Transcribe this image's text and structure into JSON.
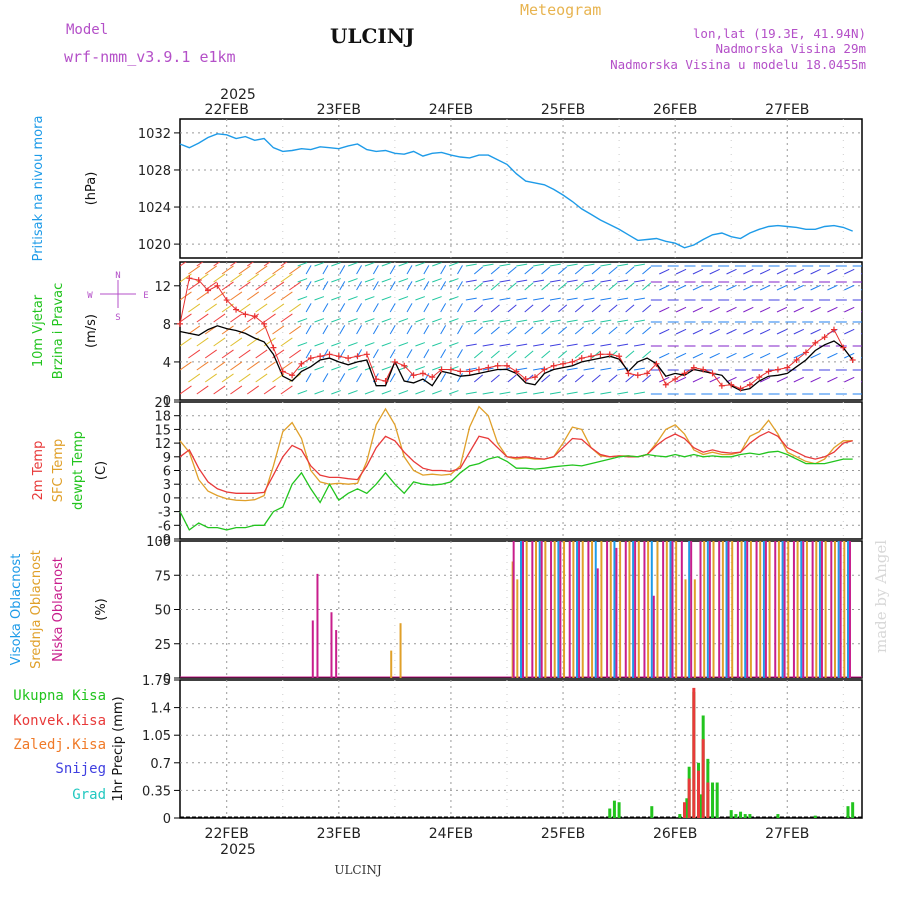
{
  "header": {
    "model_label": "Model",
    "model_name": "wrf-nmm_v3.9.1  e1km",
    "station": "ULCINJ",
    "product": "Meteogram",
    "lonlat": "lon,lat (19.3E, 41.94N)",
    "elevation": "Nadmorska Visina 29m",
    "model_elevation": "Nadmorska Visina u modelu 18.0455m",
    "footer_station": "ULCINJ",
    "watermark": "made by Angel"
  },
  "time_axis": {
    "year_top": "2025",
    "year_bottom": "2025",
    "days": [
      "22FEB",
      "23FEB",
      "24FEB",
      "25FEB",
      "26FEB",
      "27FEB"
    ]
  },
  "colors": {
    "pressure": "#1e9be8",
    "wind_speed": "#000000",
    "gust": "#e83030",
    "temp2m": "#e83a3a",
    "sfc_temp": "#e0a02a",
    "dewpoint": "#22c41e",
    "cloud_high": "#1e9be8",
    "cloud_mid": "#e0a02a",
    "cloud_low": "#c81e8c",
    "precip_total": "#22c41e",
    "precip_conv": "#e83a3a",
    "precip_frz": "#f07a28",
    "snow": "#4040e0",
    "graupel": "#22c8c0",
    "header_purple": "#b450c8",
    "header_orange": "#e8b450"
  },
  "chart_data": [
    {
      "type": "line",
      "panel": "pressure",
      "ylabel_lines": [
        "Pritisak na nivou mora",
        "(hPa)"
      ],
      "ylim": [
        1018.5,
        1033.5
      ],
      "yticks": [
        "1020",
        "1024",
        "1028",
        "1032"
      ],
      "x": [
        0,
        2,
        4,
        6,
        8,
        10,
        12,
        14,
        16,
        18,
        20,
        22,
        24,
        26,
        28,
        30,
        32,
        34,
        36,
        38,
        40,
        42,
        44,
        46,
        48,
        50,
        52,
        54,
        56,
        58,
        60,
        62,
        64,
        66,
        68,
        70,
        72,
        74,
        76,
        78,
        80,
        82,
        84,
        86,
        88,
        90,
        92,
        94,
        96,
        98,
        100,
        102,
        104,
        106,
        108,
        110,
        112,
        114,
        116,
        118,
        120,
        122,
        124,
        126,
        128,
        130,
        132,
        134,
        136,
        138,
        140,
        142,
        144
      ],
      "series": [
        {
          "values": [
            1030.8,
            1030.4,
            1030.9,
            1031.5,
            1031.9,
            1031.8,
            1031.4,
            1031.6,
            1031.2,
            1031.4,
            1030.4,
            1030.0,
            1030.1,
            1030.3,
            1030.2,
            1030.5,
            1030.4,
            1030.3,
            1030.6,
            1030.8,
            1030.2,
            1030.0,
            1030.1,
            1029.8,
            1029.7,
            1030.0,
            1029.5,
            1029.8,
            1029.9,
            1029.6,
            1029.4,
            1029.3,
            1029.6,
            1029.6,
            1029.1,
            1028.6,
            1027.6,
            1026.8,
            1026.6,
            1026.4,
            1025.9,
            1025.3,
            1024.6,
            1023.8,
            1023.2,
            1022.6,
            1022.1,
            1021.6,
            1021.0,
            1020.4,
            1020.5,
            1020.6,
            1020.3,
            1020.1,
            1019.6,
            1019.9,
            1020.5,
            1021.0,
            1021.2,
            1020.8,
            1020.6,
            1021.2,
            1021.6,
            1021.9,
            1022.0,
            1021.9,
            1021.8,
            1021.6,
            1021.6,
            1021.9,
            1022.0,
            1021.8,
            1021.4
          ]
        }
      ]
    },
    {
      "type": "line",
      "panel": "wind",
      "ylabel_lines": [
        "10m Vjetar",
        "Brzina i Pravac",
        "(m/s)"
      ],
      "compass": [
        "N",
        "W",
        "E",
        "S"
      ],
      "ylim": [
        0,
        14.5
      ],
      "yticks": [
        "0",
        "4",
        "8",
        "12"
      ],
      "x": [
        0,
        2,
        4,
        6,
        8,
        10,
        12,
        14,
        16,
        18,
        20,
        22,
        24,
        26,
        28,
        30,
        32,
        34,
        36,
        38,
        40,
        42,
        44,
        46,
        48,
        50,
        52,
        54,
        56,
        58,
        60,
        62,
        64,
        66,
        68,
        70,
        72,
        74,
        76,
        78,
        80,
        82,
        84,
        86,
        88,
        90,
        92,
        94,
        96,
        98,
        100,
        102,
        104,
        106,
        108,
        110,
        112,
        114,
        116,
        118,
        120,
        122,
        124,
        126,
        128,
        130,
        132,
        134,
        136,
        138,
        140,
        142,
        144
      ],
      "series": [
        {
          "name": "speed",
          "values": [
            7.2,
            7.0,
            6.8,
            7.4,
            7.8,
            7.5,
            7.3,
            7.0,
            6.5,
            6.1,
            4.8,
            2.5,
            2.0,
            3.0,
            3.5,
            4.2,
            4.4,
            4.0,
            3.7,
            4.0,
            4.2,
            1.5,
            1.5,
            4.0,
            2.0,
            1.8,
            2.2,
            1.5,
            3.0,
            2.8,
            2.5,
            2.6,
            2.8,
            3.0,
            3.2,
            3.2,
            2.8,
            1.8,
            1.6,
            2.8,
            3.2,
            3.4,
            3.6,
            4.0,
            4.2,
            4.4,
            4.6,
            4.3,
            3.0,
            4.0,
            4.4,
            3.8,
            2.5,
            2.8,
            2.6,
            3.2,
            3.0,
            2.8,
            2.6,
            1.5,
            1.0,
            1.2,
            2.0,
            2.5,
            2.6,
            2.8,
            3.5,
            4.2,
            5.2,
            5.8,
            6.2,
            5.5,
            4.2
          ]
        },
        {
          "name": "gust",
          "values": [
            8.0,
            12.8,
            12.6,
            11.5,
            12.0,
            10.5,
            9.5,
            9.0,
            8.8,
            8.0,
            5.5,
            3.0,
            2.6,
            3.8,
            4.4,
            4.6,
            4.8,
            4.6,
            4.4,
            4.6,
            4.8,
            2.2,
            2.0,
            4.0,
            3.6,
            2.6,
            2.8,
            2.4,
            3.2,
            3.2,
            3.0,
            3.0,
            3.2,
            3.4,
            3.6,
            3.6,
            3.0,
            2.2,
            2.4,
            3.2,
            3.6,
            3.8,
            4.0,
            4.4,
            4.6,
            4.8,
            4.8,
            4.6,
            2.8,
            2.6,
            2.8,
            3.8,
            1.6,
            2.2,
            2.8,
            3.4,
            3.2,
            2.8,
            1.5,
            1.6,
            1.2,
            1.6,
            2.4,
            3.0,
            3.2,
            3.4,
            4.2,
            5.0,
            6.0,
            6.6,
            7.4,
            5.5,
            4.2
          ]
        }
      ]
    },
    {
      "type": "line",
      "panel": "temperature",
      "ylabel_lines": [
        "2m Temp",
        "SFC Temp",
        "dewpt Temp",
        "(C)"
      ],
      "ylim": [
        -9,
        21
      ],
      "yticks": [
        "-9",
        "-6",
        "-3",
        "0",
        "3",
        "6",
        "9",
        "12",
        "15",
        "18",
        "21"
      ],
      "x": [
        0,
        2,
        4,
        6,
        8,
        10,
        12,
        14,
        16,
        18,
        20,
        22,
        24,
        26,
        28,
        30,
        32,
        34,
        36,
        38,
        40,
        42,
        44,
        46,
        48,
        50,
        52,
        54,
        56,
        58,
        60,
        62,
        64,
        66,
        68,
        70,
        72,
        74,
        76,
        78,
        80,
        82,
        84,
        86,
        88,
        90,
        92,
        94,
        96,
        98,
        100,
        102,
        104,
        106,
        108,
        110,
        112,
        114,
        116,
        118,
        120,
        122,
        124,
        126,
        128,
        130,
        132,
        134,
        136,
        138,
        140,
        142,
        144
      ],
      "series": [
        {
          "name": "2m Temp",
          "values": [
            9.0,
            10.5,
            6.5,
            3.5,
            2.0,
            1.3,
            1.0,
            1.0,
            1.0,
            1.2,
            5.0,
            9.0,
            11.5,
            10.5,
            7.0,
            5.0,
            4.5,
            4.5,
            4.2,
            4.0,
            7.0,
            11.0,
            13.5,
            12.5,
            10.0,
            8.0,
            6.5,
            6.0,
            6.0,
            5.8,
            6.5,
            10.0,
            13.5,
            13.0,
            11.0,
            9.0,
            8.8,
            9.0,
            8.7,
            8.5,
            9.0,
            11.0,
            13.0,
            12.8,
            11.0,
            9.5,
            9.0,
            9.2,
            9.0,
            9.0,
            9.5,
            11.5,
            13.0,
            14.0,
            13.0,
            11.0,
            10.0,
            10.5,
            10.0,
            9.8,
            10.0,
            12.0,
            13.5,
            14.5,
            13.5,
            11.0,
            10.0,
            9.0,
            8.5,
            9.0,
            10.0,
            12.0,
            12.5
          ]
        },
        {
          "name": "SFC Temp",
          "values": [
            12.5,
            10.0,
            4.0,
            1.5,
            0.5,
            -0.2,
            -0.5,
            -0.6,
            -0.4,
            0.5,
            7.0,
            14.5,
            16.5,
            13.0,
            6.0,
            3.5,
            3.0,
            3.2,
            3.0,
            3.2,
            8.0,
            16.0,
            19.5,
            16.0,
            9.0,
            6.0,
            5.0,
            5.2,
            5.0,
            5.2,
            7.0,
            15.5,
            20.0,
            18.0,
            12.0,
            9.0,
            8.5,
            8.8,
            8.5,
            8.5,
            9.0,
            12.0,
            15.5,
            15.0,
            11.0,
            9.2,
            9.0,
            9.2,
            9.2,
            9.0,
            9.5,
            12.0,
            15.0,
            16.0,
            14.0,
            10.5,
            9.5,
            10.0,
            9.5,
            9.5,
            10.0,
            13.5,
            14.5,
            17.0,
            14.0,
            10.0,
            9.0,
            8.0,
            7.5,
            8.5,
            11.0,
            12.5,
            12.5
          ]
        },
        {
          "name": "dewpt Temp",
          "values": [
            -3.0,
            -7.0,
            -5.5,
            -6.5,
            -6.5,
            -7.0,
            -6.5,
            -6.5,
            -6.0,
            -6.0,
            -3.0,
            -2.0,
            3.0,
            5.5,
            2.0,
            -1.0,
            3.0,
            -0.5,
            1.0,
            2.0,
            1.0,
            3.0,
            5.5,
            3.0,
            1.0,
            3.5,
            3.0,
            2.8,
            3.0,
            3.5,
            5.5,
            7.0,
            7.5,
            8.5,
            9.0,
            8.0,
            6.5,
            6.5,
            6.3,
            6.5,
            6.8,
            7.0,
            7.2,
            7.0,
            7.5,
            8.0,
            8.5,
            9.0,
            9.2,
            9.0,
            9.5,
            9.2,
            9.0,
            9.5,
            9.0,
            9.5,
            9.0,
            9.2,
            9.0,
            9.0,
            9.5,
            9.8,
            9.5,
            10.0,
            10.2,
            9.5,
            8.5,
            7.5,
            7.5,
            7.5,
            8.0,
            8.5,
            8.5
          ]
        }
      ]
    },
    {
      "type": "bar",
      "panel": "cloud",
      "ylabel_lines": [
        "Visoka Oblacnost",
        "Srednja Oblacnost",
        "Niska Oblacnost",
        "(%)"
      ],
      "ylim": [
        0,
        100
      ],
      "yticks": [
        "0",
        "25",
        "50",
        "75",
        "100"
      ],
      "series": [
        {
          "name": "Visoka Oblacnost",
          "x": [
            71,
            73,
            77,
            81,
            85,
            89,
            93,
            97,
            101,
            105,
            109,
            113,
            117,
            121,
            125,
            129,
            133,
            137,
            141,
            143
          ],
          "values": [
            0,
            100,
            100,
            100,
            100,
            100,
            100,
            100,
            100,
            100,
            100,
            100,
            100,
            100,
            100,
            100,
            100,
            100,
            100,
            100
          ]
        },
        {
          "name": "Srednja Oblacnost",
          "x": [
            45,
            47,
            71,
            72,
            74,
            76,
            78,
            80,
            82,
            84,
            86,
            88,
            90,
            92,
            94,
            96,
            98,
            100,
            102,
            104,
            106,
            108,
            110,
            112,
            114,
            116,
            118,
            120,
            122,
            124,
            126,
            128,
            130,
            132,
            134,
            136,
            138,
            140,
            142
          ],
          "values": [
            20,
            40,
            85,
            72,
            100,
            100,
            100,
            100,
            100,
            100,
            100,
            100,
            100,
            100,
            100,
            100,
            100,
            100,
            100,
            100,
            100,
            72,
            72,
            100,
            100,
            100,
            100,
            100,
            100,
            100,
            100,
            100,
            100,
            100,
            100,
            100,
            100,
            100,
            100
          ]
        },
        {
          "name": "Niska Oblacnost",
          "x": [
            28,
            29,
            32,
            33,
            71,
            73,
            75,
            77,
            79,
            81,
            83,
            85,
            87,
            89,
            91,
            93,
            95,
            97,
            99,
            101,
            103,
            105,
            107,
            109,
            111,
            113,
            115,
            117,
            119,
            121,
            123,
            125,
            127,
            129,
            131,
            133,
            135,
            137,
            139,
            141,
            143
          ],
          "values": [
            42,
            76,
            48,
            35,
            100,
            100,
            100,
            100,
            100,
            100,
            100,
            100,
            100,
            80,
            100,
            95,
            100,
            100,
            100,
            60,
            100,
            100,
            100,
            100,
            100,
            100,
            100,
            100,
            100,
            100,
            100,
            100,
            100,
            100,
            100,
            100,
            100,
            100,
            100,
            100,
            100
          ]
        }
      ]
    },
    {
      "type": "bar",
      "panel": "precip",
      "ylabel_lines": [
        "1hr Precip (mm)"
      ],
      "ylim": [
        0,
        1.75
      ],
      "yticks": [
        "0",
        "0.35",
        "0.7",
        "1.05",
        "1.4",
        "1.75"
      ],
      "legend": [
        "Ukupna Kisa",
        "Konvek.Kisa",
        "Zaledj.Kisa",
        "Snijeg",
        "Grad"
      ],
      "series": [
        {
          "name": "Ukupna Kisa",
          "x": [
            92,
            93,
            94,
            101,
            107,
            108,
            108.5,
            109,
            110,
            111,
            111.5,
            112,
            113,
            114,
            115,
            118,
            119,
            120,
            121,
            122,
            128,
            136,
            143,
            144
          ],
          "values": [
            0.12,
            0.22,
            0.2,
            0.15,
            0.05,
            0.15,
            0.25,
            0.65,
            1.6,
            0.7,
            0.3,
            1.3,
            0.75,
            0.45,
            0.45,
            0.1,
            0.05,
            0.08,
            0.05,
            0.05,
            0.05,
            0.03,
            0.15,
            0.2
          ]
        },
        {
          "name": "Konvek.Kisa",
          "x": [
            108,
            109,
            110,
            111,
            112,
            113
          ],
          "values": [
            0.2,
            0.5,
            1.65,
            0.6,
            1.0,
            0.45
          ]
        }
      ]
    }
  ]
}
